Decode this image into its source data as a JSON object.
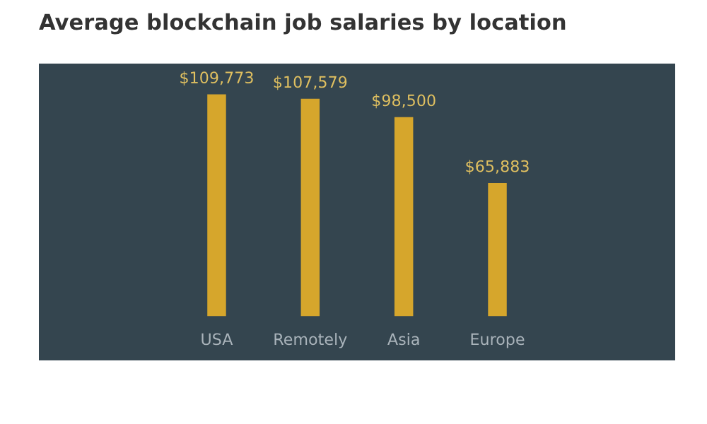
{
  "chart_data": {
    "type": "bar",
    "title": "Average blockchain job salaries by location",
    "categories": [
      "USA",
      "Remotely",
      "Asia",
      "Europe"
    ],
    "values": [
      109773,
      107579,
      98500,
      65883
    ],
    "value_labels": [
      "$109,773",
      "$107,579",
      "$98,500",
      "$65,883"
    ],
    "color": "#d6a62c",
    "ylim": [
      -22000,
      125000
    ]
  }
}
